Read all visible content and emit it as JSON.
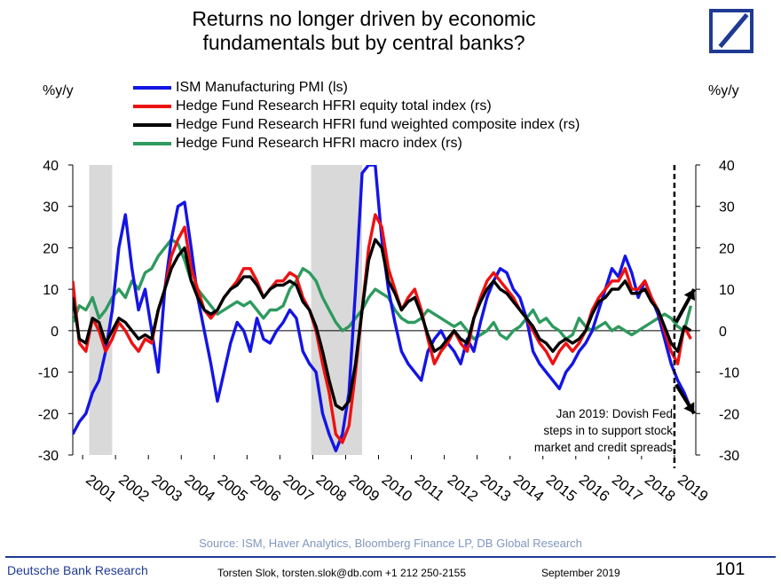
{
  "title_lines": [
    "Returns no longer driven by economic",
    "fundamentals but by central banks?"
  ],
  "y_unit_left": "%y/y",
  "y_unit_right": "%y/y",
  "annotation_lines": [
    "Jan 2019: Dovish Fed",
    "steps in to support stock",
    "market and credit spreads"
  ],
  "source": "Source: ISM, Haver Analytics, Bloomberg Finance LP, DB Global Research",
  "footer": {
    "org": "Deutsche Bank Research",
    "author": "Torsten Slok, torsten.slok@db.com  +1 212 250-2155",
    "date": "September 2019",
    "page": "101"
  },
  "colors": {
    "ism": "#1414e6",
    "equity": "#ee1111",
    "composite": "#000000",
    "macro": "#2e9a5e",
    "recession": "#d9d9d9",
    "brand": "#1f3a93"
  },
  "chart_data": {
    "type": "line",
    "y_left": {
      "min": -30,
      "max": 40,
      "ticks": [
        40,
        30,
        20,
        10,
        0,
        -10,
        -20,
        -30
      ]
    },
    "y_right": {
      "min": -30,
      "max": 40,
      "ticks": [
        40,
        30,
        20,
        10,
        0,
        -10,
        -20,
        -30
      ]
    },
    "x_range": [
      2000.7,
      2019.65
    ],
    "x_tick_labels": [
      "2001",
      "2002",
      "2003",
      "2004",
      "2005",
      "2006",
      "2007",
      "2008",
      "2009",
      "2010",
      "2011",
      "2012",
      "2013",
      "2014",
      "2015",
      "2016",
      "2017",
      "2018",
      "2019"
    ],
    "recessions": [
      [
        2001.2,
        2001.9
      ],
      [
        2007.95,
        2009.5
      ]
    ],
    "event_line_x": 2019.0,
    "series": [
      {
        "name": "ISM Manufacturing PMI (ls)",
        "key": "ism",
        "x": [
          2000.7,
          2000.9,
          2001.1,
          2001.3,
          2001.5,
          2001.7,
          2001.9,
          2002.1,
          2002.3,
          2002.5,
          2002.7,
          2002.9,
          2003.1,
          2003.3,
          2003.5,
          2003.7,
          2003.9,
          2004.1,
          2004.3,
          2004.5,
          2004.7,
          2004.9,
          2005.1,
          2005.3,
          2005.5,
          2005.7,
          2005.9,
          2006.1,
          2006.3,
          2006.5,
          2006.7,
          2006.9,
          2007.1,
          2007.3,
          2007.5,
          2007.7,
          2007.9,
          2008.1,
          2008.3,
          2008.5,
          2008.7,
          2008.9,
          2009.1,
          2009.3,
          2009.5,
          2009.7,
          2009.9,
          2010.1,
          2010.3,
          2010.5,
          2010.7,
          2010.9,
          2011.1,
          2011.3,
          2011.5,
          2011.7,
          2011.9,
          2012.1,
          2012.3,
          2012.5,
          2012.7,
          2012.9,
          2013.1,
          2013.3,
          2013.5,
          2013.7,
          2013.9,
          2014.1,
          2014.3,
          2014.5,
          2014.7,
          2014.9,
          2015.1,
          2015.3,
          2015.5,
          2015.7,
          2015.9,
          2016.1,
          2016.3,
          2016.5,
          2016.7,
          2016.9,
          2017.1,
          2017.3,
          2017.5,
          2017.7,
          2017.9,
          2018.1,
          2018.3,
          2018.5,
          2018.7,
          2018.9,
          2019.1,
          2019.3,
          2019.5
        ],
        "values": [
          -25,
          -22,
          -20,
          -15,
          -12,
          -5,
          5,
          20,
          28,
          15,
          5,
          10,
          0,
          -10,
          10,
          22,
          30,
          31,
          20,
          8,
          0,
          -8,
          -17,
          -10,
          -3,
          2,
          0,
          -5,
          3,
          -2,
          -3,
          0,
          2,
          5,
          3,
          -5,
          -8,
          -10,
          -20,
          -25,
          -29,
          -25,
          -15,
          10,
          38,
          50,
          42,
          22,
          10,
          2,
          -5,
          -8,
          -10,
          -12,
          -5,
          -2,
          0,
          -3,
          -5,
          -8,
          -2,
          -5,
          2,
          8,
          12,
          15,
          14,
          10,
          8,
          3,
          -5,
          -8,
          -10,
          -12,
          -14,
          -10,
          -8,
          -5,
          -3,
          0,
          5,
          10,
          15,
          13,
          18,
          14,
          8,
          12,
          8,
          4,
          -2,
          -8,
          -12,
          -15,
          -19
        ]
      },
      {
        "name": "Hedge Fund Research HFRI equity total index (rs)",
        "key": "equity",
        "x": [
          2000.7,
          2000.9,
          2001.1,
          2001.3,
          2001.5,
          2001.7,
          2001.9,
          2002.1,
          2002.3,
          2002.5,
          2002.7,
          2002.9,
          2003.1,
          2003.3,
          2003.5,
          2003.7,
          2003.9,
          2004.1,
          2004.3,
          2004.5,
          2004.7,
          2004.9,
          2005.1,
          2005.3,
          2005.5,
          2005.7,
          2005.9,
          2006.1,
          2006.3,
          2006.5,
          2006.7,
          2006.9,
          2007.1,
          2007.3,
          2007.5,
          2007.7,
          2007.9,
          2008.1,
          2008.3,
          2008.5,
          2008.7,
          2008.9,
          2009.1,
          2009.3,
          2009.5,
          2009.7,
          2009.9,
          2010.1,
          2010.3,
          2010.5,
          2010.7,
          2010.9,
          2011.1,
          2011.3,
          2011.5,
          2011.7,
          2011.9,
          2012.1,
          2012.3,
          2012.5,
          2012.7,
          2012.9,
          2013.1,
          2013.3,
          2013.5,
          2013.7,
          2013.9,
          2014.1,
          2014.3,
          2014.5,
          2014.7,
          2014.9,
          2015.1,
          2015.3,
          2015.5,
          2015.7,
          2015.9,
          2016.1,
          2016.3,
          2016.5,
          2016.7,
          2016.9,
          2017.1,
          2017.3,
          2017.5,
          2017.7,
          2017.9,
          2018.1,
          2018.3,
          2018.5,
          2018.7,
          2018.9,
          2019.1,
          2019.3,
          2019.5
        ],
        "values": [
          12,
          -3,
          -5,
          3,
          0,
          -5,
          -2,
          2,
          0,
          -3,
          -5,
          -2,
          -3,
          5,
          10,
          18,
          22,
          25,
          15,
          10,
          5,
          3,
          5,
          8,
          10,
          12,
          15,
          15,
          12,
          8,
          10,
          12,
          12,
          14,
          13,
          8,
          5,
          0,
          -8,
          -15,
          -25,
          -27,
          -23,
          -10,
          5,
          20,
          28,
          25,
          15,
          10,
          5,
          8,
          10,
          5,
          -2,
          -8,
          -5,
          -3,
          0,
          -3,
          -5,
          3,
          8,
          12,
          14,
          12,
          10,
          8,
          5,
          3,
          0,
          -3,
          -5,
          -8,
          -5,
          -3,
          -5,
          -3,
          0,
          5,
          8,
          10,
          12,
          12,
          15,
          10,
          10,
          12,
          8,
          5,
          0,
          -5,
          -8,
          1,
          -2
        ]
      },
      {
        "name": "Hedge Fund Research HFRI fund weighted composite index (rs)",
        "key": "composite",
        "x": [
          2000.7,
          2000.9,
          2001.1,
          2001.3,
          2001.5,
          2001.7,
          2001.9,
          2002.1,
          2002.3,
          2002.5,
          2002.7,
          2002.9,
          2003.1,
          2003.3,
          2003.5,
          2003.7,
          2003.9,
          2004.1,
          2004.3,
          2004.5,
          2004.7,
          2004.9,
          2005.1,
          2005.3,
          2005.5,
          2005.7,
          2005.9,
          2006.1,
          2006.3,
          2006.5,
          2006.7,
          2006.9,
          2007.1,
          2007.3,
          2007.5,
          2007.7,
          2007.9,
          2008.1,
          2008.3,
          2008.5,
          2008.7,
          2008.9,
          2009.1,
          2009.3,
          2009.5,
          2009.7,
          2009.9,
          2010.1,
          2010.3,
          2010.5,
          2010.7,
          2010.9,
          2011.1,
          2011.3,
          2011.5,
          2011.7,
          2011.9,
          2012.1,
          2012.3,
          2012.5,
          2012.7,
          2012.9,
          2013.1,
          2013.3,
          2013.5,
          2013.7,
          2013.9,
          2014.1,
          2014.3,
          2014.5,
          2014.7,
          2014.9,
          2015.1,
          2015.3,
          2015.5,
          2015.7,
          2015.9,
          2016.1,
          2016.3,
          2016.5,
          2016.7,
          2016.9,
          2017.1,
          2017.3,
          2017.5,
          2017.7,
          2017.9,
          2018.1,
          2018.3,
          2018.5,
          2018.7,
          2018.9,
          2019.1,
          2019.3,
          2019.5
        ],
        "values": [
          8,
          -2,
          -3,
          3,
          2,
          -3,
          0,
          3,
          2,
          0,
          -2,
          -1,
          -2,
          5,
          10,
          15,
          18,
          20,
          12,
          8,
          5,
          4,
          5,
          8,
          10,
          11,
          13,
          13,
          11,
          8,
          10,
          11,
          11,
          12,
          11,
          7,
          5,
          1,
          -5,
          -12,
          -18,
          -19,
          -17,
          -8,
          5,
          17,
          22,
          20,
          12,
          9,
          5,
          7,
          8,
          4,
          -1,
          -5,
          -4,
          -2,
          0,
          -2,
          -3,
          3,
          7,
          10,
          12,
          10,
          9,
          7,
          5,
          3,
          1,
          -2,
          -3,
          -5,
          -3,
          -2,
          -3,
          -2,
          0,
          4,
          7,
          8,
          10,
          10,
          12,
          9,
          9,
          10,
          7,
          5,
          1,
          -3,
          -5,
          1,
          0
        ]
      },
      {
        "name": "Hedge Fund Research HFRI macro index (rs)",
        "key": "macro",
        "x": [
          2000.7,
          2000.9,
          2001.1,
          2001.3,
          2001.5,
          2001.7,
          2001.9,
          2002.1,
          2002.3,
          2002.5,
          2002.7,
          2002.9,
          2003.1,
          2003.3,
          2003.5,
          2003.7,
          2003.9,
          2004.1,
          2004.3,
          2004.5,
          2004.7,
          2004.9,
          2005.1,
          2005.3,
          2005.5,
          2005.7,
          2005.9,
          2006.1,
          2006.3,
          2006.5,
          2006.7,
          2006.9,
          2007.1,
          2007.3,
          2007.5,
          2007.7,
          2007.9,
          2008.1,
          2008.3,
          2008.5,
          2008.7,
          2008.9,
          2009.1,
          2009.3,
          2009.5,
          2009.7,
          2009.9,
          2010.1,
          2010.3,
          2010.5,
          2010.7,
          2010.9,
          2011.1,
          2011.3,
          2011.5,
          2011.7,
          2011.9,
          2012.1,
          2012.3,
          2012.5,
          2012.7,
          2012.9,
          2013.1,
          2013.3,
          2013.5,
          2013.7,
          2013.9,
          2014.1,
          2014.3,
          2014.5,
          2014.7,
          2014.9,
          2015.1,
          2015.3,
          2015.5,
          2015.7,
          2015.9,
          2016.1,
          2016.3,
          2016.5,
          2016.7,
          2016.9,
          2017.1,
          2017.3,
          2017.5,
          2017.7,
          2017.9,
          2018.1,
          2018.3,
          2018.5,
          2018.7,
          2018.9,
          2019.1,
          2019.3,
          2019.5
        ],
        "values": [
          2,
          6,
          5,
          8,
          3,
          5,
          8,
          10,
          8,
          12,
          10,
          14,
          15,
          18,
          20,
          22,
          21,
          17,
          12,
          10,
          8,
          6,
          4,
          5,
          6,
          7,
          6,
          7,
          5,
          3,
          5,
          5,
          6,
          10,
          12,
          15,
          14,
          12,
          8,
          5,
          2,
          0,
          1,
          3,
          5,
          8,
          10,
          9,
          8,
          5,
          3,
          2,
          2,
          3,
          5,
          4,
          3,
          2,
          1,
          2,
          0,
          -2,
          -1,
          0,
          2,
          -1,
          -2,
          0,
          1,
          3,
          5,
          2,
          3,
          1,
          0,
          -2,
          -1,
          3,
          1,
          0,
          1,
          2,
          0,
          1,
          0,
          -1,
          0,
          1,
          2,
          3,
          4,
          3,
          1,
          0,
          6
        ]
      }
    ]
  }
}
